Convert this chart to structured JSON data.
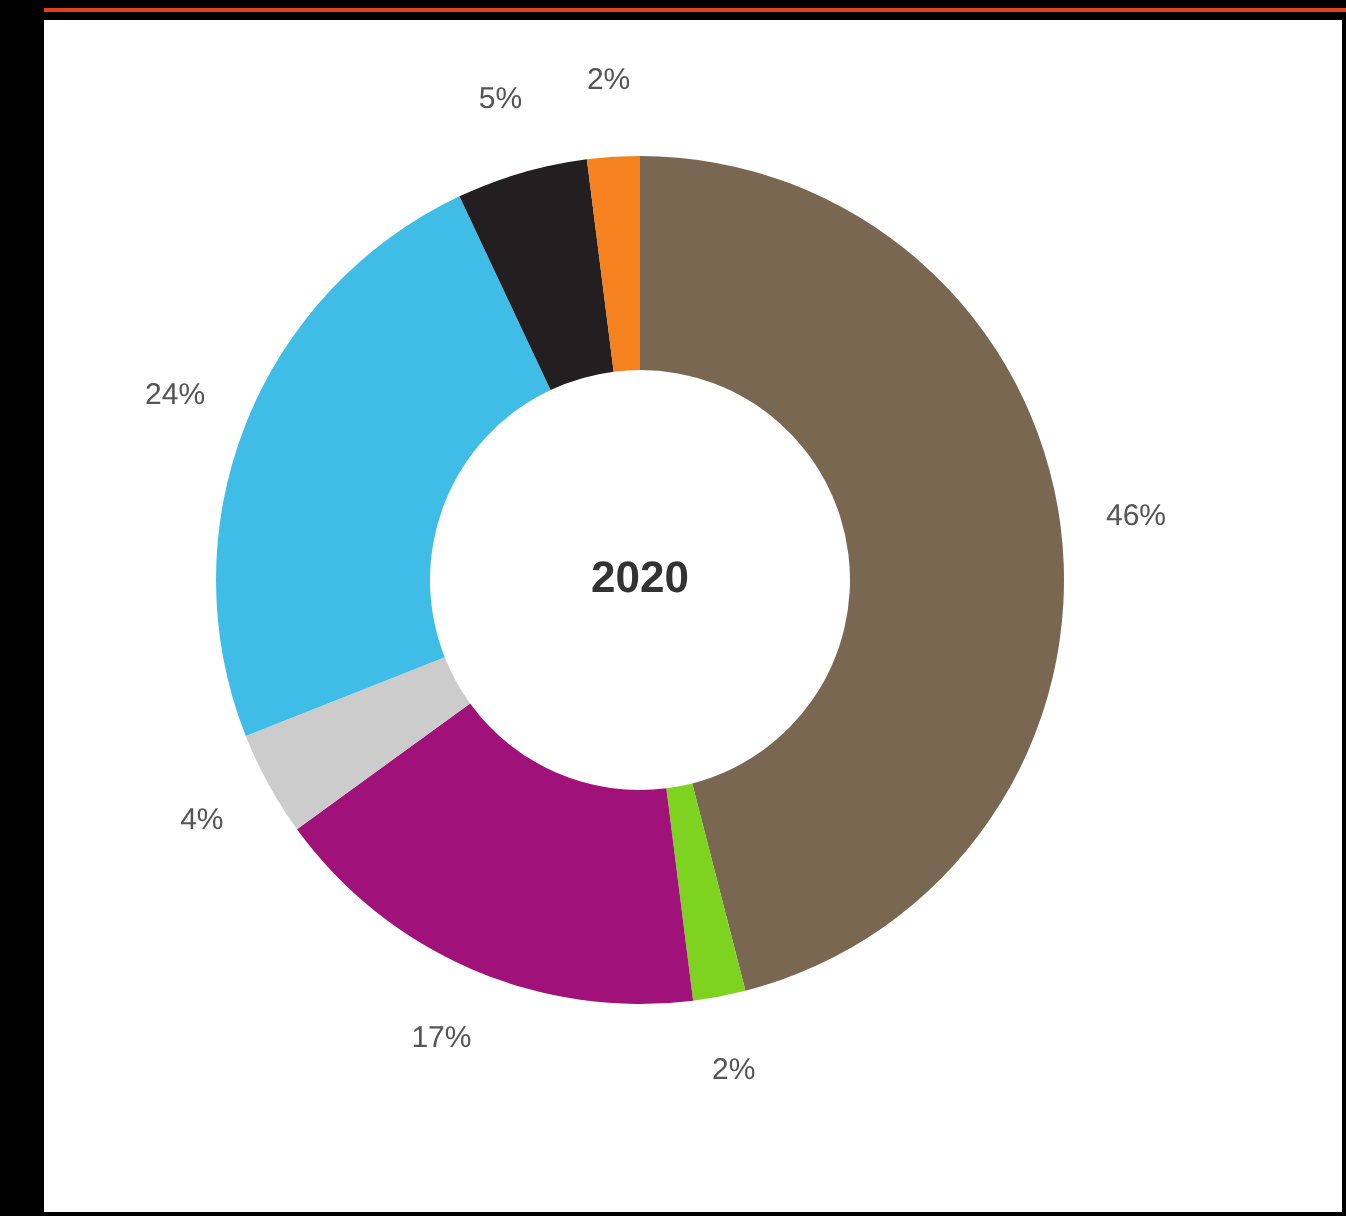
{
  "chart_data": {
    "type": "donut",
    "title": "2020",
    "categories": [
      null,
      null,
      null,
      null,
      null,
      null,
      null
    ],
    "values": [
      46,
      2,
      17,
      4,
      24,
      5,
      2
    ],
    "colors": [
      "#7a6752",
      "#7ed321",
      "#a0127a",
      "#cccccc",
      "#3fbde6",
      "#231f20",
      "#f5821f"
    ],
    "value_labels": [
      "46%",
      "2%",
      "17%",
      "4%",
      "24%",
      "5%",
      "2%"
    ]
  }
}
